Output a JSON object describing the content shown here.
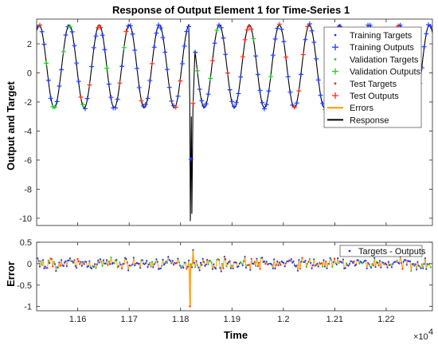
{
  "chart_data": [
    {
      "type": "line",
      "title": "Response of Output Element 1 for Time-Series 1",
      "xlabel": "",
      "ylabel": "Output and Target",
      "xlim": [
        11520,
        12290
      ],
      "ylim": [
        -10.5,
        3.7
      ],
      "xticks": [
        11600,
        11700,
        11800,
        11900,
        12000,
        12100,
        12200
      ],
      "yticks": [
        2,
        0,
        -2,
        -4,
        -6,
        -8,
        -10
      ],
      "ytick_labels": [
        "2",
        "0",
        "-2",
        "-4",
        "-6",
        "-8",
        "-10"
      ],
      "grid": false,
      "legend_position": "top-right",
      "signal": {
        "description_points_x": [
          11520,
          11560,
          11580,
          11600,
          11620,
          11640,
          11660,
          11680,
          11700,
          11720,
          11740,
          11760,
          11780,
          11800,
          11815,
          11818,
          11821,
          11824,
          11827,
          11830,
          11845,
          11860,
          11880,
          11900,
          11920,
          11940,
          11960,
          11980,
          12000,
          12020,
          12040,
          12060,
          12080,
          12100,
          12120,
          12140,
          12160,
          12180,
          12200,
          12220,
          12240,
          12260,
          12280
        ],
        "description_points_y": [
          2.9,
          3.2,
          3.3,
          -2.3,
          -2.5,
          3.3,
          3.3,
          -2.2,
          -2.4,
          3.4,
          3.2,
          -2.1,
          -2.3,
          3.3,
          3.1,
          -2.0,
          -10.2,
          -3.0,
          -9.6,
          -2.5,
          3.3,
          3.4,
          -2.2,
          -2.3,
          3.3,
          3.2,
          -2.2,
          -2.3,
          3.2,
          3.3,
          -2.1,
          -2.4,
          3.3,
          3.2,
          -2.2,
          -2.3,
          3.4,
          3.3,
          -2.2,
          -2.4,
          3.2,
          3.3,
          -2.3
        ]
      },
      "period": 58.4,
      "spike": {
        "x": 11821,
        "min": -10.2
      },
      "series": [
        {
          "name": "Training Targets",
          "color": "#1f3bff",
          "marker": "dot"
        },
        {
          "name": "Training Outputs",
          "color": "#1f3bff",
          "marker": "plus"
        },
        {
          "name": "Validation Targets",
          "color": "#22cc22",
          "marker": "dot"
        },
        {
          "name": "Validation Outputs",
          "color": "#22cc22",
          "marker": "plus"
        },
        {
          "name": "Test Targets",
          "color": "#ff2a1a",
          "marker": "dot"
        },
        {
          "name": "Test Outputs",
          "color": "#ff2a1a",
          "marker": "plus"
        },
        {
          "name": "Errors",
          "color": "#ff9900",
          "marker": "line"
        },
        {
          "name": "Response",
          "color": "#000000",
          "marker": "line"
        }
      ]
    },
    {
      "type": "line",
      "title": "",
      "xlabel": "Time",
      "ylabel": "Error",
      "xlim": [
        11520,
        12290
      ],
      "ylim": [
        -1.1,
        0.5
      ],
      "xticks": [
        11600,
        11700,
        11800,
        11900,
        12000,
        12100,
        12200
      ],
      "xtick_labels": [
        "1.16",
        "1.17",
        "1.18",
        "1.19",
        "1.2",
        "1.21",
        "1.22"
      ],
      "x_multiplier": "×10",
      "x_multiplier_exponent": "4",
      "yticks": [
        0.5,
        0,
        -0.5,
        -1
      ],
      "ytick_labels": [
        "0.5",
        "0",
        "-0.5",
        "-1"
      ],
      "grid": false,
      "legend_position": "top-right",
      "error_spike": {
        "x": 11819,
        "value": -1.0
      },
      "error_spike2": {
        "x": 11824,
        "value": 0.32
      },
      "series": [
        {
          "name": "Targets - Outputs",
          "color": "#1f3bff",
          "marker": "dot"
        }
      ]
    }
  ]
}
